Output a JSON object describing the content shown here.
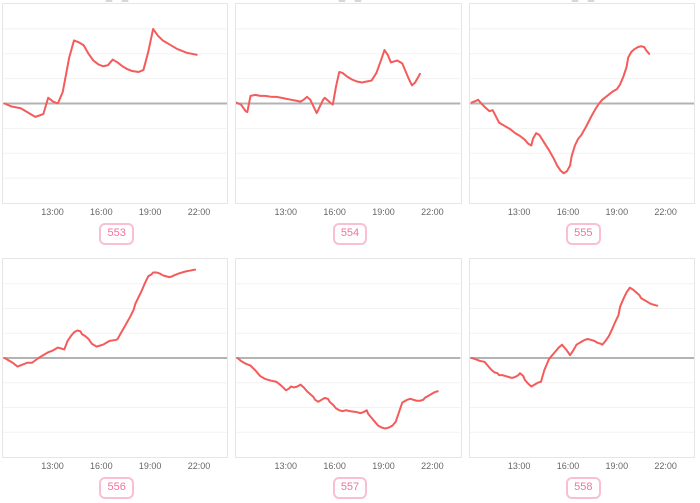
{
  "chart_grid": {
    "columns": 3,
    "rows": 2,
    "x_ticks": [
      "13:00",
      "16:00",
      "19:00",
      "22:00"
    ],
    "x_tick_hours": [
      13,
      16,
      19,
      22
    ],
    "x_range_hours": [
      9.9,
      23.8
    ],
    "gridline_divisions": 8,
    "colors": {
      "line": "#f45b5b",
      "zero_line": "#b3b3b3",
      "grid_line": "#f2f2f2",
      "plot_border": "#e6e6e6",
      "tick_label": "#666666",
      "badge_text": "#f2739f",
      "badge_border": "#f9c0d3"
    }
  },
  "chart_data": [
    {
      "type": "line",
      "badge": "553",
      "y_units": "normalized change vs. baseline (no y-axis labels shown; 0 = gray baseline, 1 = plot top)",
      "points": [
        [
          10.0,
          0
        ],
        [
          10.4,
          -0.03
        ],
        [
          11.0,
          -0.05
        ],
        [
          11.6,
          -0.11
        ],
        [
          11.9,
          -0.14
        ],
        [
          12.4,
          -0.11
        ],
        [
          12.7,
          0.06
        ],
        [
          13.0,
          0.02
        ],
        [
          13.3,
          0.0
        ],
        [
          13.6,
          0.12
        ],
        [
          14.0,
          0.48
        ],
        [
          14.3,
          0.66
        ],
        [
          14.6,
          0.64
        ],
        [
          14.9,
          0.61
        ],
        [
          15.2,
          0.52
        ],
        [
          15.5,
          0.45
        ],
        [
          15.8,
          0.41
        ],
        [
          16.1,
          0.39
        ],
        [
          16.4,
          0.4
        ],
        [
          16.7,
          0.46
        ],
        [
          17.0,
          0.43
        ],
        [
          17.3,
          0.39
        ],
        [
          17.6,
          0.36
        ],
        [
          17.9,
          0.34
        ],
        [
          18.3,
          0.33
        ],
        [
          18.6,
          0.35
        ],
        [
          18.9,
          0.54
        ],
        [
          19.2,
          0.78
        ],
        [
          19.5,
          0.71
        ],
        [
          19.8,
          0.66
        ],
        [
          20.1,
          0.63
        ],
        [
          20.4,
          0.6
        ],
        [
          20.7,
          0.57
        ],
        [
          21.0,
          0.55
        ],
        [
          21.3,
          0.53
        ],
        [
          21.6,
          0.52
        ],
        [
          21.9,
          0.51
        ]
      ]
    },
    {
      "type": "line",
      "badge": "554",
      "y_units": "normalized change vs. baseline (no y-axis labels shown; 0 = gray baseline, 1 = plot top)",
      "points": [
        [
          9.9,
          0.01
        ],
        [
          10.2,
          -0.01
        ],
        [
          10.5,
          -0.08
        ],
        [
          10.6,
          -0.09
        ],
        [
          10.8,
          0.08
        ],
        [
          11.1,
          0.09
        ],
        [
          11.4,
          0.08
        ],
        [
          11.7,
          0.08
        ],
        [
          12.1,
          0.07
        ],
        [
          12.4,
          0.07
        ],
        [
          12.7,
          0.06
        ],
        [
          13.0,
          0.05
        ],
        [
          13.3,
          0.04
        ],
        [
          13.6,
          0.03
        ],
        [
          13.9,
          0.02
        ],
        [
          14.1,
          0.04
        ],
        [
          14.3,
          0.07
        ],
        [
          14.5,
          0.04
        ],
        [
          14.7,
          -0.03
        ],
        [
          14.9,
          -0.1
        ],
        [
          15.1,
          -0.03
        ],
        [
          15.3,
          0.04
        ],
        [
          15.4,
          0.06
        ],
        [
          15.6,
          0.03
        ],
        [
          15.8,
          0.0
        ],
        [
          15.9,
          -0.01
        ],
        [
          16.1,
          0.18
        ],
        [
          16.3,
          0.33
        ],
        [
          16.5,
          0.32
        ],
        [
          16.8,
          0.28
        ],
        [
          17.1,
          0.25
        ],
        [
          17.4,
          0.23
        ],
        [
          17.7,
          0.22
        ],
        [
          18.0,
          0.23
        ],
        [
          18.3,
          0.24
        ],
        [
          18.6,
          0.32
        ],
        [
          18.9,
          0.46
        ],
        [
          19.1,
          0.56
        ],
        [
          19.3,
          0.51
        ],
        [
          19.5,
          0.43
        ],
        [
          19.7,
          0.44
        ],
        [
          19.9,
          0.45
        ],
        [
          20.0,
          0.44
        ],
        [
          20.2,
          0.42
        ],
        [
          20.4,
          0.34
        ],
        [
          20.6,
          0.26
        ],
        [
          20.8,
          0.19
        ],
        [
          21.0,
          0.22
        ],
        [
          21.2,
          0.28
        ],
        [
          21.3,
          0.31
        ]
      ]
    },
    {
      "type": "line",
      "badge": "555",
      "y_units": "normalized change vs. baseline (no y-axis labels shown; 0 = gray baseline, 1 = plot top)",
      "points": [
        [
          10.0,
          0.01
        ],
        [
          10.3,
          0.03
        ],
        [
          10.4,
          0.04
        ],
        [
          10.6,
          0.0
        ],
        [
          10.9,
          -0.05
        ],
        [
          11.1,
          -0.08
        ],
        [
          11.3,
          -0.07
        ],
        [
          11.4,
          -0.1
        ],
        [
          11.7,
          -0.2
        ],
        [
          12.1,
          -0.24
        ],
        [
          12.4,
          -0.27
        ],
        [
          12.7,
          -0.31
        ],
        [
          13.0,
          -0.34
        ],
        [
          13.3,
          -0.38
        ],
        [
          13.5,
          -0.42
        ],
        [
          13.7,
          -0.44
        ],
        [
          13.8,
          -0.37
        ],
        [
          14.0,
          -0.31
        ],
        [
          14.2,
          -0.33
        ],
        [
          14.5,
          -0.41
        ],
        [
          14.8,
          -0.49
        ],
        [
          15.1,
          -0.58
        ],
        [
          15.3,
          -0.65
        ],
        [
          15.5,
          -0.7
        ],
        [
          15.7,
          -0.73
        ],
        [
          15.9,
          -0.71
        ],
        [
          16.1,
          -0.65
        ],
        [
          16.2,
          -0.55
        ],
        [
          16.4,
          -0.44
        ],
        [
          16.6,
          -0.37
        ],
        [
          16.8,
          -0.33
        ],
        [
          17.1,
          -0.24
        ],
        [
          17.4,
          -0.14
        ],
        [
          17.7,
          -0.05
        ],
        [
          17.9,
          0.0
        ],
        [
          18.1,
          0.04
        ],
        [
          18.4,
          0.08
        ],
        [
          18.7,
          0.12
        ],
        [
          19.0,
          0.15
        ],
        [
          19.2,
          0.2
        ],
        [
          19.4,
          0.28
        ],
        [
          19.6,
          0.38
        ],
        [
          19.7,
          0.48
        ],
        [
          19.9,
          0.54
        ],
        [
          20.1,
          0.57
        ],
        [
          20.3,
          0.59
        ],
        [
          20.5,
          0.6
        ],
        [
          20.7,
          0.59
        ],
        [
          20.8,
          0.56
        ],
        [
          21.0,
          0.52
        ]
      ]
    },
    {
      "type": "line",
      "badge": "556",
      "y_units": "normalized change vs. baseline (no y-axis labels shown; 0 = gray baseline, 1 = plot top)",
      "points": [
        [
          10.0,
          0.0
        ],
        [
          10.2,
          -0.02
        ],
        [
          10.5,
          -0.05
        ],
        [
          10.8,
          -0.09
        ],
        [
          11.1,
          -0.07
        ],
        [
          11.4,
          -0.05
        ],
        [
          11.7,
          -0.05
        ],
        [
          12.1,
          0.0
        ],
        [
          12.4,
          0.03
        ],
        [
          12.7,
          0.06
        ],
        [
          13.0,
          0.08
        ],
        [
          13.3,
          0.11
        ],
        [
          13.5,
          0.1
        ],
        [
          13.7,
          0.09
        ],
        [
          13.9,
          0.18
        ],
        [
          14.1,
          0.23
        ],
        [
          14.3,
          0.27
        ],
        [
          14.5,
          0.29
        ],
        [
          14.7,
          0.28
        ],
        [
          14.8,
          0.25
        ],
        [
          15.0,
          0.23
        ],
        [
          15.2,
          0.2
        ],
        [
          15.4,
          0.15
        ],
        [
          15.6,
          0.13
        ],
        [
          15.7,
          0.12
        ],
        [
          15.9,
          0.13
        ],
        [
          16.1,
          0.14
        ],
        [
          16.3,
          0.16
        ],
        [
          16.5,
          0.18
        ],
        [
          16.9,
          0.19
        ],
        [
          17.0,
          0.2
        ],
        [
          17.2,
          0.26
        ],
        [
          17.4,
          0.32
        ],
        [
          17.6,
          0.38
        ],
        [
          17.8,
          0.44
        ],
        [
          18.0,
          0.51
        ],
        [
          18.1,
          0.57
        ],
        [
          18.3,
          0.64
        ],
        [
          18.5,
          0.71
        ],
        [
          18.7,
          0.79
        ],
        [
          18.9,
          0.86
        ],
        [
          19.1,
          0.88
        ],
        [
          19.2,
          0.9
        ],
        [
          19.4,
          0.9
        ],
        [
          19.6,
          0.89
        ],
        [
          19.8,
          0.87
        ],
        [
          20.0,
          0.86
        ],
        [
          20.2,
          0.85
        ],
        [
          20.4,
          0.86
        ],
        [
          20.5,
          0.87
        ],
        [
          20.8,
          0.89
        ],
        [
          21.2,
          0.91
        ],
        [
          21.5,
          0.92
        ],
        [
          21.8,
          0.93
        ]
      ]
    },
    {
      "type": "line",
      "badge": "557",
      "y_units": "normalized change vs. baseline (no y-axis labels shown; 0 = gray baseline, 1 = plot top)",
      "points": [
        [
          10.0,
          0.0
        ],
        [
          10.2,
          -0.03
        ],
        [
          10.5,
          -0.06
        ],
        [
          10.8,
          -0.08
        ],
        [
          11.1,
          -0.13
        ],
        [
          11.4,
          -0.19
        ],
        [
          11.7,
          -0.22
        ],
        [
          12.1,
          -0.24
        ],
        [
          12.4,
          -0.25
        ],
        [
          12.7,
          -0.29
        ],
        [
          13.0,
          -0.34
        ],
        [
          13.2,
          -0.32
        ],
        [
          13.3,
          -0.3
        ],
        [
          13.5,
          -0.31
        ],
        [
          13.7,
          -0.3
        ],
        [
          13.9,
          -0.28
        ],
        [
          14.1,
          -0.31
        ],
        [
          14.3,
          -0.35
        ],
        [
          14.5,
          -0.38
        ],
        [
          14.7,
          -0.41
        ],
        [
          14.8,
          -0.44
        ],
        [
          15.0,
          -0.46
        ],
        [
          15.2,
          -0.44
        ],
        [
          15.4,
          -0.42
        ],
        [
          15.6,
          -0.43
        ],
        [
          15.7,
          -0.46
        ],
        [
          15.9,
          -0.49
        ],
        [
          16.1,
          -0.53
        ],
        [
          16.3,
          -0.55
        ],
        [
          16.5,
          -0.56
        ],
        [
          16.7,
          -0.55
        ],
        [
          17.0,
          -0.56
        ],
        [
          17.4,
          -0.57
        ],
        [
          17.6,
          -0.58
        ],
        [
          17.8,
          -0.57
        ],
        [
          18.0,
          -0.55
        ],
        [
          18.1,
          -0.59
        ],
        [
          18.3,
          -0.63
        ],
        [
          18.5,
          -0.67
        ],
        [
          18.7,
          -0.71
        ],
        [
          18.9,
          -0.73
        ],
        [
          19.1,
          -0.74
        ],
        [
          19.2,
          -0.74
        ],
        [
          19.4,
          -0.73
        ],
        [
          19.6,
          -0.71
        ],
        [
          19.8,
          -0.67
        ],
        [
          20.0,
          -0.57
        ],
        [
          20.2,
          -0.47
        ],
        [
          20.4,
          -0.45
        ],
        [
          20.5,
          -0.44
        ],
        [
          20.7,
          -0.43
        ],
        [
          20.9,
          -0.44
        ],
        [
          21.1,
          -0.45
        ],
        [
          21.3,
          -0.45
        ],
        [
          21.5,
          -0.44
        ],
        [
          21.6,
          -0.42
        ],
        [
          21.8,
          -0.4
        ],
        [
          22.0,
          -0.38
        ],
        [
          22.2,
          -0.36
        ],
        [
          22.4,
          -0.35
        ]
      ]
    },
    {
      "type": "line",
      "badge": "558",
      "y_units": "normalized change vs. baseline (no y-axis labels shown; 0 = gray baseline, 1 = plot top)",
      "points": [
        [
          10.0,
          0.0
        ],
        [
          10.2,
          -0.01
        ],
        [
          10.5,
          -0.03
        ],
        [
          10.8,
          -0.04
        ],
        [
          11.0,
          -0.08
        ],
        [
          11.2,
          -0.12
        ],
        [
          11.4,
          -0.15
        ],
        [
          11.6,
          -0.16
        ],
        [
          11.7,
          -0.18
        ],
        [
          11.9,
          -0.18
        ],
        [
          12.1,
          -0.19
        ],
        [
          12.3,
          -0.2
        ],
        [
          12.5,
          -0.21
        ],
        [
          12.7,
          -0.2
        ],
        [
          12.9,
          -0.18
        ],
        [
          13.0,
          -0.16
        ],
        [
          13.2,
          -0.19
        ],
        [
          13.3,
          -0.23
        ],
        [
          13.5,
          -0.27
        ],
        [
          13.7,
          -0.3
        ],
        [
          13.9,
          -0.28
        ],
        [
          14.1,
          -0.26
        ],
        [
          14.3,
          -0.25
        ],
        [
          14.5,
          -0.13
        ],
        [
          14.7,
          -0.05
        ],
        [
          14.8,
          -0.01
        ],
        [
          15.0,
          0.03
        ],
        [
          15.2,
          0.07
        ],
        [
          15.4,
          0.11
        ],
        [
          15.6,
          0.14
        ],
        [
          15.7,
          0.12
        ],
        [
          15.9,
          0.08
        ],
        [
          16.1,
          0.03
        ],
        [
          16.3,
          0.08
        ],
        [
          16.5,
          0.14
        ],
        [
          16.7,
          0.16
        ],
        [
          16.9,
          0.18
        ],
        [
          17.0,
          0.19
        ],
        [
          17.2,
          0.2
        ],
        [
          17.4,
          0.19
        ],
        [
          17.6,
          0.18
        ],
        [
          17.8,
          0.16
        ],
        [
          18.0,
          0.15
        ],
        [
          18.1,
          0.14
        ],
        [
          18.3,
          0.18
        ],
        [
          18.5,
          0.23
        ],
        [
          18.7,
          0.3
        ],
        [
          18.9,
          0.38
        ],
        [
          19.1,
          0.45
        ],
        [
          19.2,
          0.54
        ],
        [
          19.4,
          0.62
        ],
        [
          19.6,
          0.69
        ],
        [
          19.8,
          0.74
        ],
        [
          20.0,
          0.72
        ],
        [
          20.2,
          0.69
        ],
        [
          20.4,
          0.66
        ],
        [
          20.5,
          0.63
        ],
        [
          20.7,
          0.61
        ],
        [
          20.9,
          0.59
        ],
        [
          21.1,
          0.57
        ],
        [
          21.3,
          0.56
        ],
        [
          21.5,
          0.55
        ]
      ]
    }
  ]
}
